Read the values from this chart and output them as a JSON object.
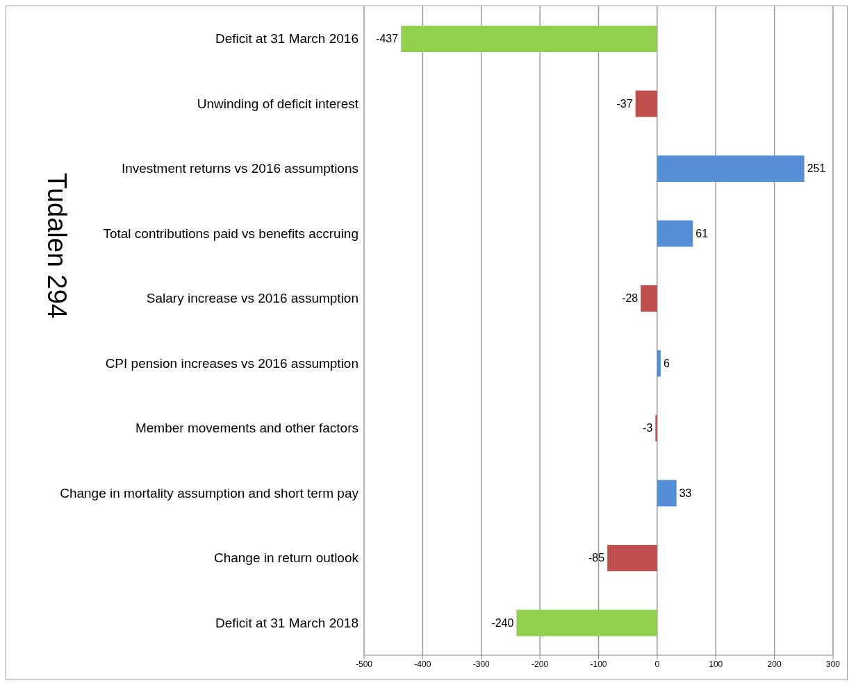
{
  "chart_data": {
    "type": "bar",
    "orientation": "horizontal",
    "title": "Tudalen 294",
    "categories": [
      "Deficit at 31 March 2016",
      "Unwinding of deficit interest",
      "Investment returns vs 2016 assumptions",
      "Total contributions paid vs benefits accruing",
      "Salary increase vs 2016 assumption",
      "CPI pension increases vs 2016 assumption",
      "Member movements and other factors",
      "Change in mortality assumption and short term pay",
      "Change in return outlook",
      "Deficit at 31 March 2018"
    ],
    "values": [
      -437,
      -37,
      251,
      61,
      -28,
      6,
      -3,
      33,
      -85,
      -240
    ],
    "colors": [
      "#92d050",
      "#c0504d",
      "#558ed5",
      "#558ed5",
      "#c0504d",
      "#558ed5",
      "#c0504d",
      "#558ed5",
      "#c0504d",
      "#92d050"
    ],
    "xlim": [
      -500,
      300
    ],
    "xticks": [
      -500,
      -400,
      -300,
      -200,
      -100,
      0,
      100,
      200,
      300
    ],
    "grid": "x",
    "data_labels": true
  }
}
